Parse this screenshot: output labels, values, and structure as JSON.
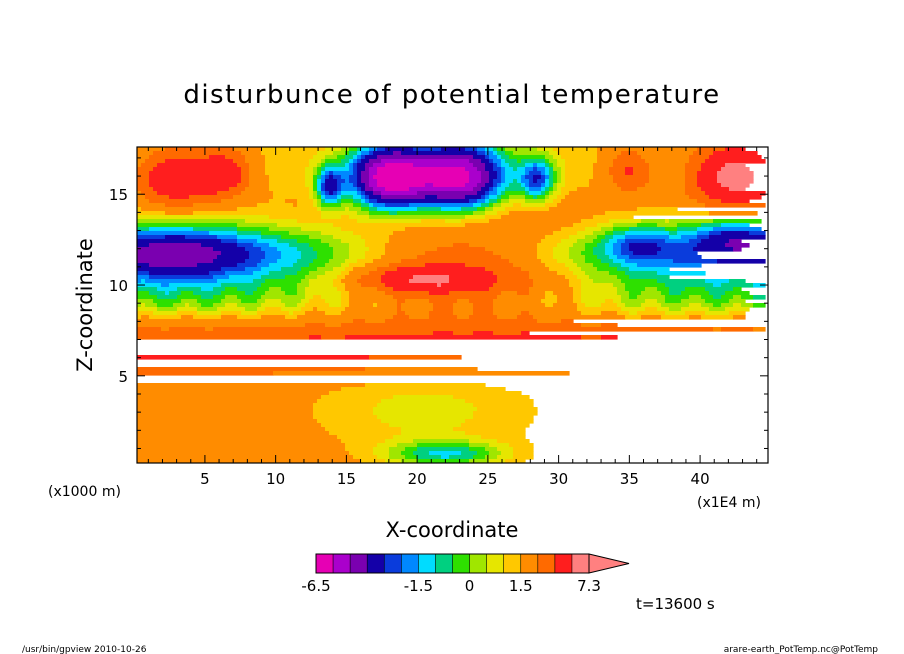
{
  "chart_data": {
    "type": "heatmap",
    "title": "disturbunce of potential temperature",
    "xlabel": "X-coordinate",
    "ylabel": "Z-coordinate",
    "x_unit_left": "(x1000 m)",
    "x_unit_right": "(x1E4 m)",
    "xlim": [
      0.2,
      44.8
    ],
    "ylim": [
      0.2,
      17.6
    ],
    "x_ticks": [
      5,
      10,
      15,
      20,
      25,
      30,
      35,
      40
    ],
    "y_ticks": [
      5,
      10,
      15
    ],
    "colorbar": {
      "labels": [
        "-6.5",
        "-1.5",
        "0",
        "1.5",
        "7.3"
      ],
      "label_values": [
        -6.5,
        -1.5,
        0,
        1.5,
        7.3
      ],
      "levels": [
        -6.5,
        -5.5,
        -4.5,
        -3.5,
        -2.5,
        -2.0,
        -1.5,
        -1.0,
        -0.5,
        0,
        0.5,
        1.0,
        1.5,
        2.5,
        3.5,
        5.0,
        7.3
      ],
      "colors": [
        "#e600b4",
        "#aa00cc",
        "#7a00b0",
        "#1400a8",
        "#0a3cdc",
        "#0088ff",
        "#00dcff",
        "#00d080",
        "#2ee000",
        "#a0e600",
        "#e6e600",
        "#ffc800",
        "#ff8c00",
        "#ff6a00",
        "#ff1e1e",
        "#ff8080"
      ],
      "extend": "max"
    },
    "time_label": "t=13600 s",
    "footer_left": "/usr/bin/gpview   2010-10-26",
    "footer_right": "arare-earth_PotTemp.nc@PotTemp"
  }
}
